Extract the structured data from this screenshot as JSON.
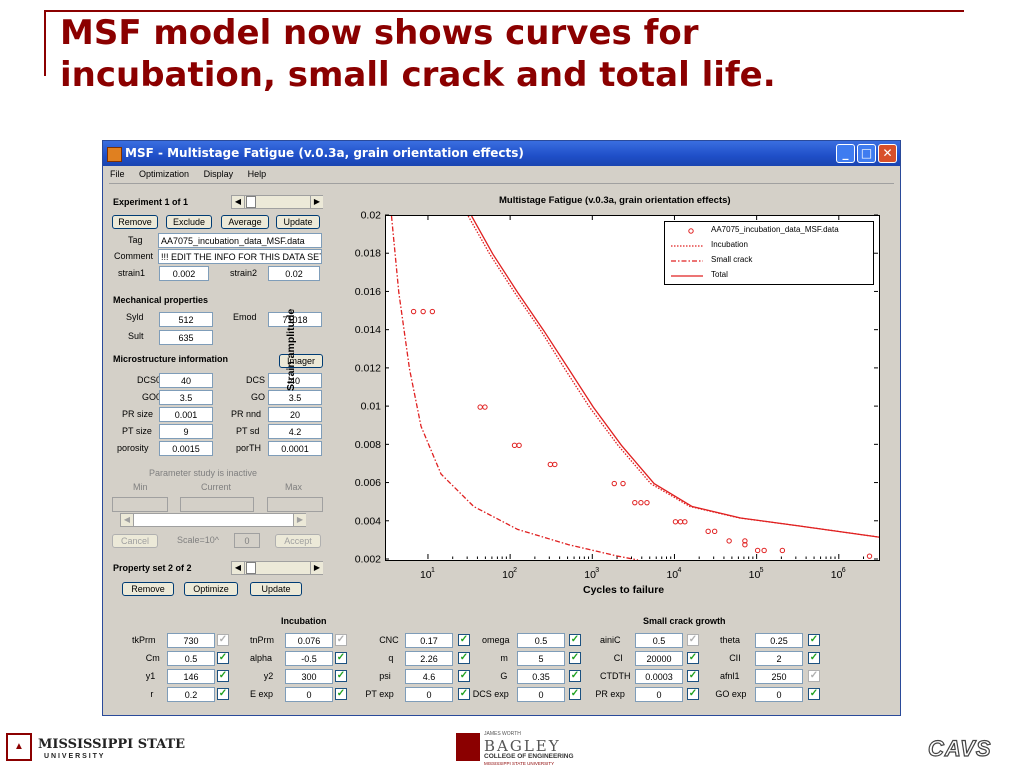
{
  "slide": {
    "title_line1": "MSF model now shows curves for",
    "title_line2": "incubation, small crack and total life."
  },
  "window": {
    "title": "MSF - Multistage Fatigue (v.0.3a, grain orientation effects)",
    "menu": [
      "File",
      "Optimization",
      "Display",
      "Help"
    ]
  },
  "experiment": {
    "header": "Experiment 1 of 1",
    "buttons": [
      "Remove",
      "Exclude",
      "Average",
      "Update"
    ],
    "tag_label": "Tag",
    "tag_value": "AA7075_incubation_data_MSF.data",
    "comment_label": "Comment",
    "comment_value": "!!! EDIT THE INFO FOR THIS DATA SET",
    "strain1_label": "strain1",
    "strain1_value": "0.002",
    "strain2_label": "strain2",
    "strain2_value": "0.02"
  },
  "mechanical": {
    "header": "Mechanical properties",
    "syld_label": "Syld",
    "syld_value": "512",
    "emod_label": "Emod",
    "emod_value": "71018",
    "sult_label": "Sult",
    "sult_value": "635"
  },
  "microstructure": {
    "header": "Microstructure information",
    "imager_button": "Imager",
    "rows": [
      {
        "l1": "DCS0",
        "v1": "40",
        "l2": "DCS",
        "v2": "40"
      },
      {
        "l1": "GO0",
        "v1": "3.5",
        "l2": "GO",
        "v2": "3.5"
      },
      {
        "l1": "PR size",
        "v1": "0.001",
        "l2": "PR nnd",
        "v2": "20"
      },
      {
        "l1": "PT size",
        "v1": "9",
        "l2": "PT sd",
        "v2": "4.2"
      },
      {
        "l1": "porosity",
        "v1": "0.0015",
        "l2": "porTH",
        "v2": "0.0001"
      }
    ]
  },
  "parameter_study": {
    "header": "Parameter study is inactive",
    "min_label": "Min",
    "current_label": "Current",
    "max_label": "Max",
    "cancel": "Cancel",
    "scale_label": "Scale=10^",
    "scale_value": "0",
    "accept": "Accept"
  },
  "property_set": {
    "header": "Property set 2 of 2",
    "buttons": [
      "Remove",
      "Optimize",
      "Update"
    ]
  },
  "incubation": {
    "header": "Incubation",
    "rows": [
      [
        {
          "l": "tkPrm",
          "v": "730",
          "c": false
        },
        {
          "l": "tnPrm",
          "v": "0.076",
          "c": false
        },
        {
          "l": "CNC",
          "v": "0.17",
          "c": true
        }
      ],
      [
        {
          "l": "Cm",
          "v": "0.5",
          "c": true
        },
        {
          "l": "alpha",
          "v": "-0.5",
          "c": true
        },
        {
          "l": "q",
          "v": "2.26",
          "c": true
        }
      ],
      [
        {
          "l": "y1",
          "v": "146",
          "c": true
        },
        {
          "l": "y2",
          "v": "300",
          "c": true
        },
        {
          "l": "psi",
          "v": "4.6",
          "c": true
        }
      ],
      [
        {
          "l": "r",
          "v": "0.2",
          "c": true
        },
        {
          "l": "E exp",
          "v": "0",
          "c": true
        },
        {
          "l": "PT exp",
          "v": "0",
          "c": true
        }
      ]
    ]
  },
  "small_crack": {
    "header": "Small crack growth",
    "rows": [
      [
        {
          "l": "omega",
          "v": "0.5",
          "c": true
        },
        {
          "l": "ainiC",
          "v": "0.5",
          "c": false
        },
        {
          "l": "theta",
          "v": "0.25",
          "c": true
        }
      ],
      [
        {
          "l": "m",
          "v": "5",
          "c": true
        },
        {
          "l": "CI",
          "v": "20000",
          "c": true
        },
        {
          "l": "CII",
          "v": "2",
          "c": true
        }
      ],
      [
        {
          "l": "G",
          "v": "0.35",
          "c": true
        },
        {
          "l": "CTDTH",
          "v": "0.0003",
          "c": true
        },
        {
          "l": "afnl1",
          "v": "250",
          "c": false
        }
      ],
      [
        {
          "l": "DCS exp",
          "v": "0",
          "c": true
        },
        {
          "l": "PR exp",
          "v": "0",
          "c": true
        },
        {
          "l": "GO exp",
          "v": "0",
          "c": true
        }
      ]
    ]
  },
  "chart_data": {
    "type": "line",
    "title": "Multistage Fatigue (v.0.3a, grain orientation effects)",
    "xlabel": "Cycles to failure",
    "ylabel": "Strain amplitude",
    "xscale": "log",
    "xlim": [
      3,
      3000000
    ],
    "ylim": [
      0.002,
      0.02
    ],
    "yticks": [
      "0.002",
      "0.004",
      "0.006",
      "0.008",
      "0.01",
      "0.012",
      "0.014",
      "0.016",
      "0.018",
      "0.02"
    ],
    "xtick_base": "10",
    "xtick_exps": [
      "1",
      "2",
      "3",
      "4",
      "5",
      "6"
    ],
    "legend_position": "top-right",
    "series": [
      {
        "name": "AA7075_incubation_data_MSF.data",
        "style": "markers",
        "color": "#e02020",
        "points": [
          [
            6.5,
            0.015
          ],
          [
            8.5,
            0.015
          ],
          [
            11,
            0.015
          ],
          [
            42,
            0.01
          ],
          [
            48,
            0.01
          ],
          [
            110,
            0.008
          ],
          [
            125,
            0.008
          ],
          [
            300,
            0.007
          ],
          [
            340,
            0.007
          ],
          [
            1800,
            0.006
          ],
          [
            2300,
            0.006
          ],
          [
            3200,
            0.005
          ],
          [
            3800,
            0.005
          ],
          [
            4500,
            0.005
          ],
          [
            10000,
            0.004
          ],
          [
            11500,
            0.004
          ],
          [
            13000,
            0.004
          ],
          [
            25000,
            0.0035
          ],
          [
            30000,
            0.0035
          ],
          [
            45000,
            0.003
          ],
          [
            70000,
            0.003
          ],
          [
            70000,
            0.0028
          ],
          [
            100000,
            0.0025
          ],
          [
            120000,
            0.0025
          ],
          [
            200000,
            0.0025
          ],
          [
            2300000,
            0.0022
          ]
        ]
      },
      {
        "name": "Incubation",
        "style": "dotted",
        "color": "#e02020",
        "points": [
          [
            30,
            0.02
          ],
          [
            55,
            0.018
          ],
          [
            110,
            0.016
          ],
          [
            230,
            0.014
          ],
          [
            450,
            0.012
          ],
          [
            900,
            0.01
          ],
          [
            2000,
            0.008
          ],
          [
            5000,
            0.006
          ],
          [
            15000,
            0.0048
          ],
          [
            60000,
            0.0042
          ],
          [
            300000,
            0.0038
          ],
          [
            3000000,
            0.0032
          ]
        ]
      },
      {
        "name": "Small crack",
        "style": "dashdot",
        "color": "#e02020",
        "points": [
          [
            3.5,
            0.02
          ],
          [
            4.3,
            0.016
          ],
          [
            5.8,
            0.012
          ],
          [
            8,
            0.009
          ],
          [
            14,
            0.0065
          ],
          [
            35,
            0.0048
          ],
          [
            120,
            0.0036
          ],
          [
            500,
            0.0028
          ],
          [
            2000,
            0.0022
          ],
          [
            3500,
            0.002
          ]
        ]
      },
      {
        "name": "Total",
        "style": "solid",
        "color": "#e02020",
        "points": [
          [
            33,
            0.02
          ],
          [
            60,
            0.018
          ],
          [
            120,
            0.016
          ],
          [
            250,
            0.014
          ],
          [
            500,
            0.012
          ],
          [
            1000,
            0.01
          ],
          [
            2200,
            0.008
          ],
          [
            5500,
            0.006
          ],
          [
            16000,
            0.0048
          ],
          [
            62000,
            0.0042
          ],
          [
            300000,
            0.0038
          ],
          [
            3000000,
            0.0032
          ]
        ]
      }
    ]
  },
  "footer": {
    "msu_line1": "MISSISSIPPI STATE",
    "msu_line2": "U N I V E R S I T Y",
    "bagley_top": "JAMES WORTH",
    "bagley_name": "BAGLEY",
    "bagley_line1": "COLLEGE OF ENGINEERING",
    "bagley_line2": "MISSISSIPPI STATE UNIVERSITY",
    "cavs": "CAVS"
  }
}
